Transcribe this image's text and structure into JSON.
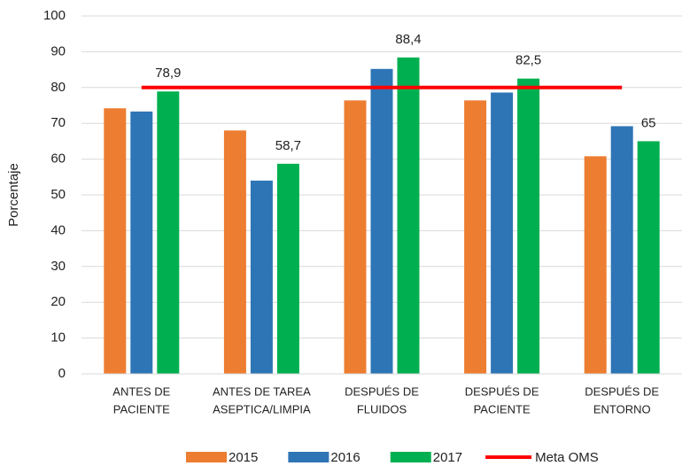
{
  "chart_data": {
    "type": "bar",
    "y_label": "Porcentaje",
    "categories": [
      [
        "ANTES DE",
        "PACIENTE"
      ],
      [
        "ANTES DE TAREA",
        "ASEPTICA/LIMPIA"
      ],
      [
        "DESPUÉS DE",
        "FLUIDOS"
      ],
      [
        "DESPUÉS DE",
        "PACIENTE"
      ],
      [
        "DESPUÉS DE",
        "ENTORNO"
      ]
    ],
    "series": [
      {
        "name": "2015",
        "color": "#ed7d31",
        "values": [
          74.2,
          68,
          76.4,
          76.4,
          60.8
        ]
      },
      {
        "name": "2016",
        "color": "#2e75b6",
        "values": [
          73.3,
          54,
          85.2,
          78.6,
          69.2
        ]
      },
      {
        "name": "2017",
        "color": "#00b050",
        "values": [
          78.9,
          58.7,
          88.4,
          82.5,
          65
        ],
        "value_labels": [
          "78,9",
          "58,7",
          "88,4",
          "82,5",
          "65"
        ]
      },
      {
        "name": "Meta OMS",
        "type": "line",
        "color": "#ff0000",
        "values": [
          80,
          80,
          80,
          80,
          80
        ]
      }
    ],
    "ylim": [
      0,
      100
    ],
    "yticks": [
      0,
      10,
      20,
      30,
      40,
      50,
      60,
      70,
      80,
      90,
      100
    ],
    "grid": true,
    "legend": "bottom"
  }
}
